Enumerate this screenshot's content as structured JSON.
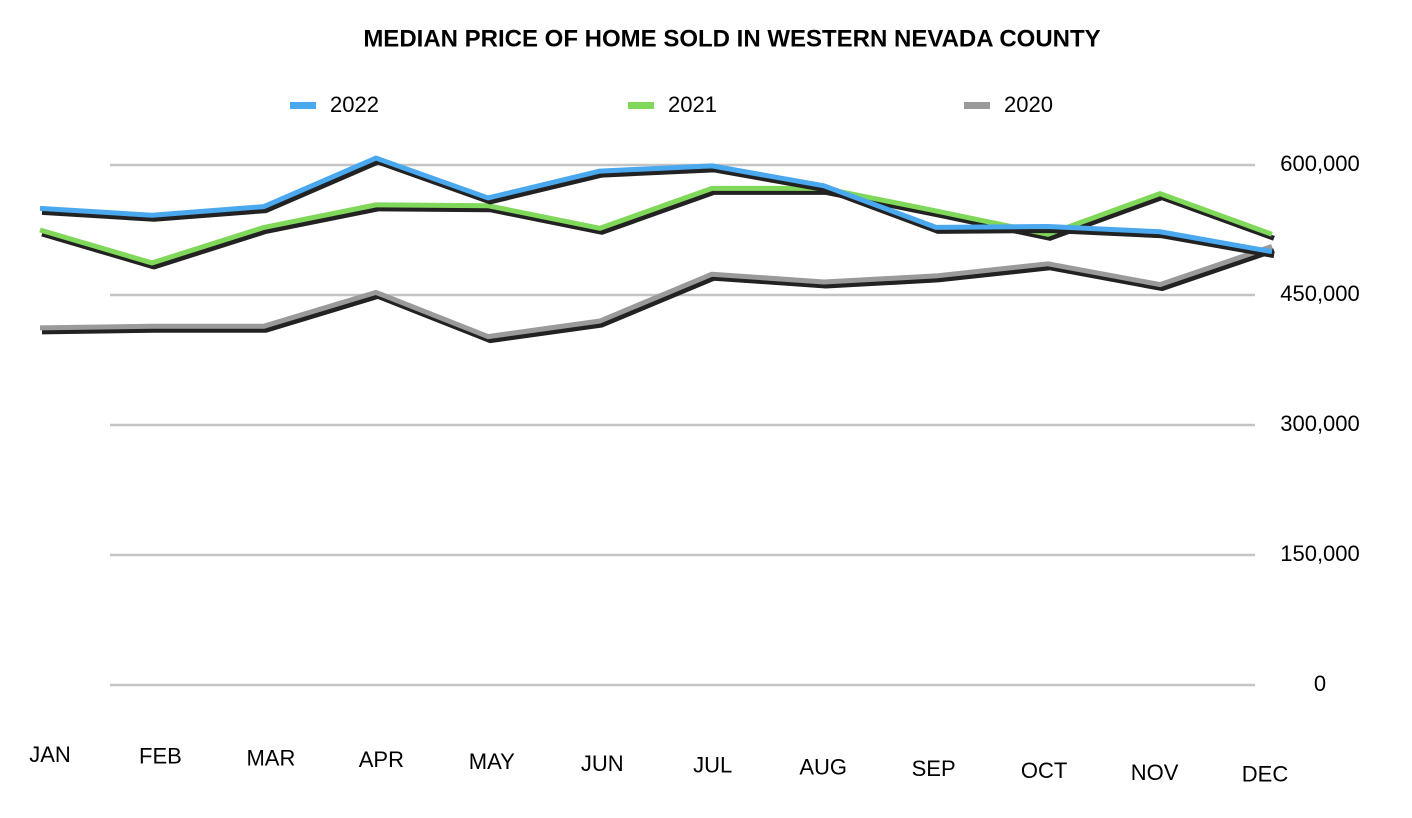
{
  "chart_data": {
    "type": "line",
    "title": "MEDIAN PRICE OF HOME SOLD IN WESTERN NEVADA COUNTY",
    "categories": [
      "JAN",
      "FEB",
      "MAR",
      "APR",
      "MAY",
      "JUN",
      "JUL",
      "AUG",
      "SEP",
      "OCT",
      "NOV",
      "DEC"
    ],
    "series": [
      {
        "name": "2022",
        "color": "#4aa8ee",
        "values": [
          550000,
          542000,
          552000,
          608000,
          562000,
          593000,
          599000,
          576000,
          528000,
          529000,
          523000,
          500000
        ]
      },
      {
        "name": "2021",
        "color": "#80d85a",
        "values": [
          525000,
          487000,
          528000,
          554000,
          553000,
          527000,
          573000,
          573000,
          547000,
          520000,
          567000,
          520000
        ]
      },
      {
        "name": "2020",
        "color": "#9a9a9a",
        "values": [
          412000,
          414000,
          414000,
          453000,
          402000,
          420000,
          474000,
          465000,
          472000,
          486000,
          462000,
          506000
        ]
      }
    ],
    "ylim": [
      0,
      600000
    ],
    "yticks": [
      0,
      {
        "value": 150000,
        "label": "150,000"
      },
      {
        "value": 300000,
        "label": "300,000"
      },
      {
        "value": 450000,
        "label": "450,000"
      },
      {
        "value": 600000,
        "label": "600,000"
      }
    ],
    "grid": true,
    "legend": "top"
  }
}
